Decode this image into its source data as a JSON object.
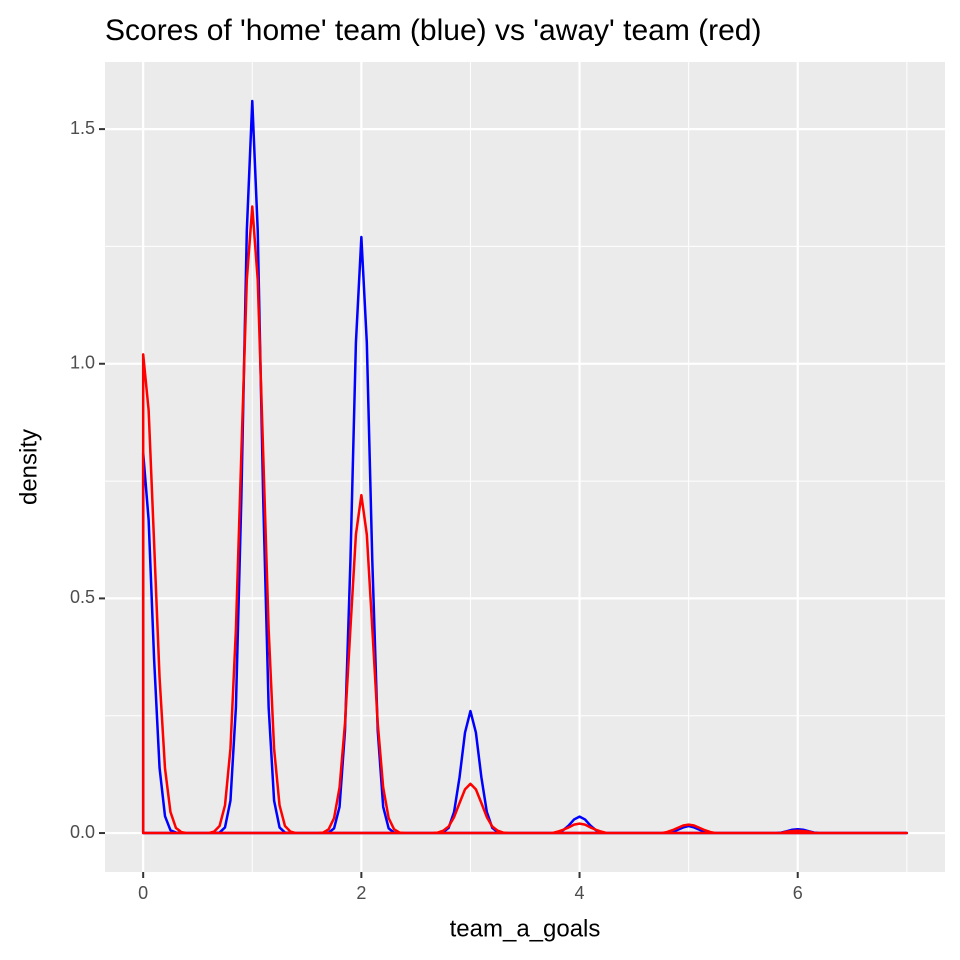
{
  "chart_data": {
    "type": "line",
    "title": "Scores of 'home' team (blue) vs 'away' team (red)",
    "xlabel": "team_a_goals",
    "ylabel": "density",
    "x": [
      0,
      0.05,
      0.1,
      0.15,
      0.2,
      0.25,
      0.3,
      0.35,
      0.4,
      0.45,
      0.5,
      0.55,
      0.6,
      0.65,
      0.7,
      0.75,
      0.8,
      0.85,
      0.9,
      0.95,
      1,
      1.05,
      1.1,
      1.15,
      1.2,
      1.25,
      1.3,
      1.35,
      1.4,
      1.45,
      1.5,
      1.55,
      1.6,
      1.65,
      1.7,
      1.75,
      1.8,
      1.85,
      1.9,
      1.95,
      2,
      2.05,
      2.1,
      2.15,
      2.2,
      2.25,
      2.3,
      2.35,
      2.4,
      2.45,
      2.5,
      2.55,
      2.6,
      2.65,
      2.7,
      2.75,
      2.8,
      2.85,
      2.9,
      2.95,
      3,
      3.05,
      3.1,
      3.15,
      3.2,
      3.25,
      3.3,
      3.35,
      3.4,
      3.45,
      3.5,
      3.55,
      3.6,
      3.65,
      3.7,
      3.75,
      3.8,
      3.85,
      3.9,
      3.95,
      4,
      4.05,
      4.1,
      4.15,
      4.2,
      4.25,
      4.3,
      4.35,
      4.4,
      4.45,
      4.5,
      4.55,
      4.6,
      4.65,
      4.7,
      4.75,
      4.8,
      4.85,
      4.9,
      4.95,
      5,
      5.05,
      5.1,
      5.15,
      5.2,
      5.25,
      5.3,
      5.35,
      5.4,
      5.45,
      5.5,
      5.55,
      5.6,
      5.65,
      5.7,
      5.75,
      5.8,
      5.85,
      5.9,
      5.95,
      6,
      6.05,
      6.1,
      6.15,
      6.2,
      6.25,
      6.3,
      6.35,
      6.4,
      6.45,
      6.5,
      6.55,
      6.6,
      6.65,
      6.7,
      6.75,
      6.8,
      6.85,
      6.9,
      6.95,
      7
    ],
    "series": [
      {
        "name": "home",
        "color": "#0000ff",
        "values": [
          0.81,
          0.667,
          0.371,
          0.139,
          0.036,
          0.006,
          0.001,
          0,
          0,
          0,
          0,
          0,
          0,
          0,
          0.001,
          0.012,
          0.069,
          0.268,
          0.714,
          1.284,
          1.56,
          1.284,
          0.714,
          0.268,
          0.069,
          0.012,
          0.001,
          0,
          0,
          0,
          0,
          0,
          0,
          0,
          0.001,
          0.01,
          0.056,
          0.218,
          0.582,
          1.045,
          1.27,
          1.045,
          0.582,
          0.218,
          0.056,
          0.01,
          0.001,
          0,
          0,
          0,
          0,
          0,
          0,
          0,
          0,
          0.002,
          0.011,
          0.045,
          0.119,
          0.214,
          0.26,
          0.214,
          0.119,
          0.045,
          0.011,
          0.002,
          0,
          0,
          0,
          0,
          0,
          0,
          0,
          0,
          0,
          0,
          0.002,
          0.006,
          0.016,
          0.029,
          0.035,
          0.029,
          0.016,
          0.006,
          0.002,
          0,
          0,
          0,
          0,
          0,
          0,
          0,
          0,
          0,
          0,
          0,
          0.001,
          0.003,
          0.007,
          0.012,
          0.015,
          0.012,
          0.007,
          0.003,
          0.001,
          0,
          0,
          0,
          0,
          0,
          0,
          0,
          0,
          0,
          0,
          0,
          0,
          0.001,
          0.004,
          0.007,
          0.008,
          0.007,
          0.004,
          0.001,
          0,
          0,
          0,
          0,
          0,
          0,
          0,
          0,
          0,
          0,
          0,
          0,
          0,
          0,
          0,
          0,
          0
        ]
      },
      {
        "name": "away",
        "color": "#ff0000",
        "values": [
          1.02,
          0.901,
          0.619,
          0.332,
          0.138,
          0.045,
          0.011,
          0.002,
          0,
          0,
          0,
          0,
          0,
          0.003,
          0.015,
          0.059,
          0.18,
          0.434,
          0.81,
          1.179,
          1.335,
          1.179,
          0.81,
          0.434,
          0.18,
          0.059,
          0.015,
          0.003,
          0,
          0,
          0,
          0,
          0,
          0.001,
          0.008,
          0.032,
          0.097,
          0.234,
          0.437,
          0.636,
          0.72,
          0.636,
          0.437,
          0.234,
          0.097,
          0.032,
          0.008,
          0.001,
          0,
          0,
          0,
          0,
          0,
          0,
          0.001,
          0.005,
          0.014,
          0.034,
          0.064,
          0.093,
          0.105,
          0.093,
          0.064,
          0.034,
          0.014,
          0.005,
          0.001,
          0,
          0,
          0,
          0,
          0,
          0,
          0,
          0,
          0,
          0.003,
          0.007,
          0.012,
          0.018,
          0.02,
          0.018,
          0.012,
          0.007,
          0.003,
          0,
          0,
          0,
          0,
          0,
          0,
          0,
          0,
          0,
          0,
          0,
          0.002,
          0.006,
          0.011,
          0.016,
          0.018,
          0.016,
          0.011,
          0.006,
          0.002,
          0,
          0,
          0,
          0,
          0,
          0,
          0,
          0,
          0,
          0,
          0,
          0,
          0,
          0.003,
          0.004,
          0.005,
          0.004,
          0.003,
          0,
          0,
          0,
          0,
          0,
          0,
          0,
          0,
          0,
          0,
          0,
          0,
          0,
          0,
          0,
          0,
          0,
          0
        ]
      }
    ],
    "xlim": [
      -0.35,
      7.35
    ],
    "ylim": [
      -0.083,
      1.643
    ],
    "xticks": [
      0,
      2,
      4,
      6
    ],
    "minor_xticks": [
      1,
      3,
      5,
      7
    ],
    "yticks": [
      {
        "value": 0,
        "label": "0.0"
      },
      0.5,
      {
        "value": 1,
        "label": "1.0"
      },
      1.5
    ],
    "minor_yticks": [
      0.25,
      0.75,
      1.25
    ],
    "grid": true
  }
}
